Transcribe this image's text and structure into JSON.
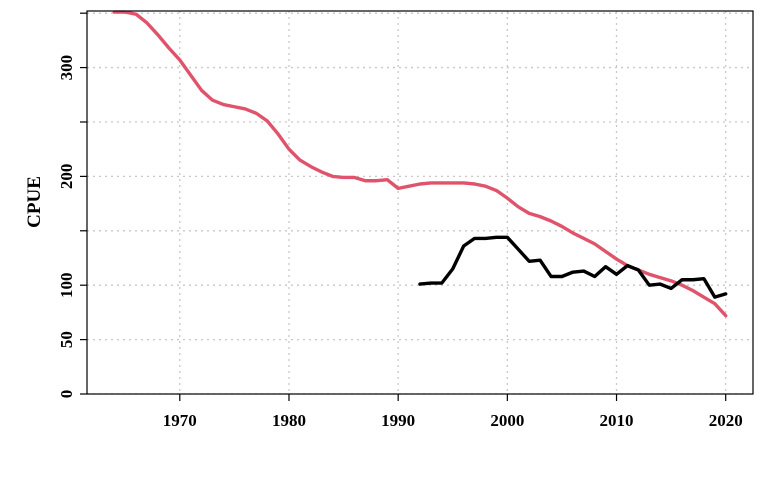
{
  "chart_data": {
    "type": "line",
    "title": "",
    "xlabel": "",
    "ylabel": "CPUE",
    "xlim": [
      1961.5,
      2022.5
    ],
    "ylim": [
      0,
      352
    ],
    "xticks": [
      1970,
      1980,
      1990,
      2000,
      2010,
      2020
    ],
    "yticks": [
      0,
      50,
      100,
      200,
      300
    ],
    "gridlines_y": [
      0,
      50,
      100,
      150,
      200,
      250,
      300,
      350
    ],
    "grid": true,
    "grid_style": "dotted",
    "colors": {
      "red": "#DF536B",
      "black": "#000000",
      "grid": "#c8c8c8"
    },
    "series": [
      {
        "color": "#DF536B",
        "x": [
          1964,
          1965,
          1966,
          1967,
          1968,
          1969,
          1970,
          1971,
          1972,
          1973,
          1974,
          1975,
          1976,
          1977,
          1978,
          1979,
          1980,
          1981,
          1982,
          1983,
          1984,
          1985,
          1986,
          1987,
          1988,
          1989,
          1990,
          1991,
          1992,
          1993,
          1994,
          1995,
          1996,
          1997,
          1998,
          1999,
          2000,
          2001,
          2002,
          2003,
          2004,
          2005,
          2006,
          2007,
          2008,
          2009,
          2010,
          2011,
          2012,
          2013,
          2014,
          2015,
          2016,
          2017,
          2018,
          2019,
          2020
        ],
        "values": [
          351,
          351,
          349,
          341,
          330,
          318,
          307,
          293,
          279,
          270,
          266,
          264,
          262,
          258,
          251,
          239,
          225,
          215,
          209,
          204,
          200,
          199,
          199,
          196,
          196,
          197,
          189,
          191,
          193,
          194,
          194,
          194,
          194,
          193,
          191,
          187,
          180,
          172,
          166,
          163,
          159,
          154,
          148,
          143,
          138,
          131,
          124,
          118,
          114,
          110,
          107,
          104,
          100,
          95,
          89,
          83,
          72
        ]
      },
      {
        "color": "#000000",
        "x": [
          1992,
          1993,
          1994,
          1995,
          1996,
          1997,
          1998,
          1999,
          2000,
          2001,
          2002,
          2003,
          2004,
          2005,
          2006,
          2007,
          2008,
          2009,
          2010,
          2011,
          2012,
          2013,
          2014,
          2015,
          2016,
          2017,
          2018,
          2019,
          2020
        ],
        "values": [
          101,
          102,
          102,
          115,
          136,
          143,
          143,
          144,
          144,
          133,
          122,
          123,
          108,
          108,
          112,
          113,
          108,
          117,
          110,
          118,
          114,
          100,
          101,
          97,
          105,
          105,
          106,
          89,
          92
        ]
      }
    ]
  }
}
